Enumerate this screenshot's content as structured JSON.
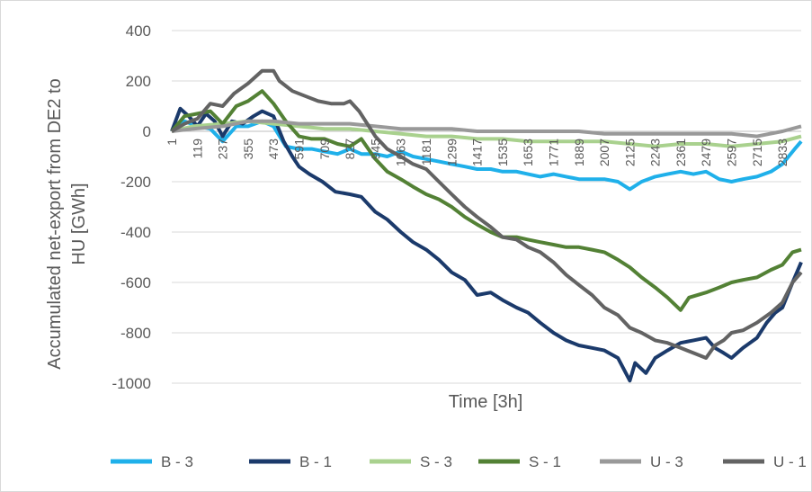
{
  "chart_data": {
    "type": "line",
    "title": "",
    "xlabel": "Time [3h]",
    "ylabel": "Accumulated net-export from DE2 to HU [GWh]",
    "ylim": [
      -1000,
      400
    ],
    "yticks": [
      400,
      200,
      0,
      -200,
      -400,
      -600,
      -800,
      -1000
    ],
    "xlim": [
      1,
      2920
    ],
    "xticks": [
      1,
      119,
      237,
      355,
      473,
      591,
      709,
      827,
      945,
      1063,
      1181,
      1299,
      1417,
      1535,
      1653,
      1771,
      1889,
      2007,
      2125,
      2243,
      2361,
      2479,
      2597,
      2715,
      2833
    ],
    "grid": "horizontal",
    "legend": "bottom",
    "series": [
      {
        "name": "B - 3",
        "color": "#1fb0ea",
        "points": [
          [
            1,
            0
          ],
          [
            60,
            40
          ],
          [
            120,
            20
          ],
          [
            180,
            10
          ],
          [
            237,
            -40
          ],
          [
            300,
            20
          ],
          [
            355,
            20
          ],
          [
            420,
            40
          ],
          [
            473,
            20
          ],
          [
            530,
            -60
          ],
          [
            591,
            -70
          ],
          [
            650,
            -70
          ],
          [
            709,
            -80
          ],
          [
            770,
            -90
          ],
          [
            827,
            -70
          ],
          [
            880,
            -90
          ],
          [
            945,
            -90
          ],
          [
            1000,
            -100
          ],
          [
            1063,
            -80
          ],
          [
            1120,
            -100
          ],
          [
            1181,
            -110
          ],
          [
            1240,
            -120
          ],
          [
            1299,
            -130
          ],
          [
            1360,
            -140
          ],
          [
            1417,
            -150
          ],
          [
            1480,
            -150
          ],
          [
            1535,
            -160
          ],
          [
            1600,
            -160
          ],
          [
            1653,
            -170
          ],
          [
            1710,
            -180
          ],
          [
            1771,
            -170
          ],
          [
            1830,
            -180
          ],
          [
            1889,
            -190
          ],
          [
            1950,
            -190
          ],
          [
            2007,
            -190
          ],
          [
            2070,
            -200
          ],
          [
            2125,
            -230
          ],
          [
            2180,
            -200
          ],
          [
            2243,
            -180
          ],
          [
            2300,
            -170
          ],
          [
            2361,
            -160
          ],
          [
            2420,
            -170
          ],
          [
            2479,
            -160
          ],
          [
            2540,
            -190
          ],
          [
            2597,
            -200
          ],
          [
            2650,
            -190
          ],
          [
            2715,
            -180
          ],
          [
            2780,
            -160
          ],
          [
            2833,
            -130
          ],
          [
            2890,
            -70
          ],
          [
            2920,
            -40
          ]
        ]
      },
      {
        "name": "B - 1",
        "color": "#1b3a6b",
        "points": [
          [
            1,
            0
          ],
          [
            40,
            90
          ],
          [
            80,
            60
          ],
          [
            120,
            20
          ],
          [
            160,
            70
          ],
          [
            200,
            40
          ],
          [
            237,
            -20
          ],
          [
            280,
            40
          ],
          [
            330,
            30
          ],
          [
            380,
            60
          ],
          [
            420,
            80
          ],
          [
            473,
            60
          ],
          [
            520,
            -40
          ],
          [
            560,
            -100
          ],
          [
            591,
            -140
          ],
          [
            640,
            -170
          ],
          [
            700,
            -200
          ],
          [
            760,
            -240
          ],
          [
            827,
            -250
          ],
          [
            880,
            -260
          ],
          [
            945,
            -320
          ],
          [
            1000,
            -350
          ],
          [
            1063,
            -400
          ],
          [
            1120,
            -440
          ],
          [
            1181,
            -470
          ],
          [
            1240,
            -510
          ],
          [
            1299,
            -560
          ],
          [
            1360,
            -590
          ],
          [
            1417,
            -650
          ],
          [
            1480,
            -640
          ],
          [
            1535,
            -670
          ],
          [
            1600,
            -700
          ],
          [
            1653,
            -720
          ],
          [
            1710,
            -760
          ],
          [
            1771,
            -800
          ],
          [
            1830,
            -830
          ],
          [
            1889,
            -850
          ],
          [
            1950,
            -860
          ],
          [
            2007,
            -870
          ],
          [
            2070,
            -900
          ],
          [
            2125,
            -990
          ],
          [
            2150,
            -920
          ],
          [
            2200,
            -960
          ],
          [
            2243,
            -900
          ],
          [
            2300,
            -870
          ],
          [
            2361,
            -840
          ],
          [
            2420,
            -830
          ],
          [
            2479,
            -820
          ],
          [
            2520,
            -860
          ],
          [
            2560,
            -880
          ],
          [
            2597,
            -900
          ],
          [
            2650,
            -860
          ],
          [
            2715,
            -820
          ],
          [
            2760,
            -760
          ],
          [
            2800,
            -720
          ],
          [
            2833,
            -700
          ],
          [
            2880,
            -600
          ],
          [
            2920,
            -520
          ]
        ]
      },
      {
        "name": "S - 3",
        "color": "#a9d18e",
        "points": [
          [
            1,
            0
          ],
          [
            100,
            20
          ],
          [
            237,
            30
          ],
          [
            355,
            40
          ],
          [
            473,
            30
          ],
          [
            591,
            20
          ],
          [
            709,
            10
          ],
          [
            827,
            10
          ],
          [
            945,
            0
          ],
          [
            1063,
            -10
          ],
          [
            1181,
            -20
          ],
          [
            1299,
            -20
          ],
          [
            1417,
            -30
          ],
          [
            1535,
            -30
          ],
          [
            1653,
            -40
          ],
          [
            1771,
            -40
          ],
          [
            1889,
            -40
          ],
          [
            2007,
            -40
          ],
          [
            2125,
            -50
          ],
          [
            2243,
            -60
          ],
          [
            2361,
            -50
          ],
          [
            2479,
            -50
          ],
          [
            2597,
            -60
          ],
          [
            2715,
            -50
          ],
          [
            2833,
            -40
          ],
          [
            2920,
            -20
          ]
        ]
      },
      {
        "name": "S - 1",
        "color": "#538135",
        "points": [
          [
            1,
            0
          ],
          [
            60,
            60
          ],
          [
            120,
            70
          ],
          [
            180,
            80
          ],
          [
            237,
            30
          ],
          [
            300,
            100
          ],
          [
            355,
            120
          ],
          [
            420,
            160
          ],
          [
            473,
            110
          ],
          [
            530,
            40
          ],
          [
            591,
            -20
          ],
          [
            650,
            -30
          ],
          [
            709,
            -30
          ],
          [
            770,
            -50
          ],
          [
            827,
            -60
          ],
          [
            880,
            -30
          ],
          [
            945,
            -110
          ],
          [
            1000,
            -160
          ],
          [
            1063,
            -190
          ],
          [
            1120,
            -220
          ],
          [
            1181,
            -250
          ],
          [
            1240,
            -270
          ],
          [
            1299,
            -300
          ],
          [
            1360,
            -340
          ],
          [
            1417,
            -370
          ],
          [
            1480,
            -400
          ],
          [
            1535,
            -420
          ],
          [
            1600,
            -420
          ],
          [
            1653,
            -430
          ],
          [
            1710,
            -440
          ],
          [
            1771,
            -450
          ],
          [
            1830,
            -460
          ],
          [
            1889,
            -460
          ],
          [
            1950,
            -470
          ],
          [
            2007,
            -480
          ],
          [
            2070,
            -510
          ],
          [
            2125,
            -540
          ],
          [
            2180,
            -580
          ],
          [
            2243,
            -620
          ],
          [
            2300,
            -660
          ],
          [
            2361,
            -710
          ],
          [
            2400,
            -660
          ],
          [
            2479,
            -640
          ],
          [
            2540,
            -620
          ],
          [
            2597,
            -600
          ],
          [
            2650,
            -590
          ],
          [
            2715,
            -580
          ],
          [
            2780,
            -550
          ],
          [
            2833,
            -530
          ],
          [
            2880,
            -480
          ],
          [
            2920,
            -470
          ]
        ]
      },
      {
        "name": "U - 3",
        "color": "#999999",
        "points": [
          [
            1,
            0
          ],
          [
            100,
            10
          ],
          [
            237,
            20
          ],
          [
            355,
            40
          ],
          [
            473,
            40
          ],
          [
            591,
            30
          ],
          [
            709,
            30
          ],
          [
            827,
            30
          ],
          [
            945,
            20
          ],
          [
            1063,
            10
          ],
          [
            1181,
            10
          ],
          [
            1299,
            10
          ],
          [
            1417,
            0
          ],
          [
            1535,
            0
          ],
          [
            1653,
            0
          ],
          [
            1771,
            0
          ],
          [
            1889,
            0
          ],
          [
            2007,
            -10
          ],
          [
            2125,
            -10
          ],
          [
            2243,
            -10
          ],
          [
            2361,
            -10
          ],
          [
            2479,
            -10
          ],
          [
            2597,
            -10
          ],
          [
            2715,
            -20
          ],
          [
            2833,
            0
          ],
          [
            2920,
            20
          ]
        ]
      },
      {
        "name": "U - 1",
        "color": "#636363",
        "points": [
          [
            1,
            0
          ],
          [
            60,
            30
          ],
          [
            120,
            50
          ],
          [
            180,
            110
          ],
          [
            237,
            100
          ],
          [
            290,
            150
          ],
          [
            355,
            190
          ],
          [
            420,
            240
          ],
          [
            473,
            240
          ],
          [
            500,
            200
          ],
          [
            560,
            160
          ],
          [
            620,
            140
          ],
          [
            680,
            120
          ],
          [
            740,
            110
          ],
          [
            800,
            110
          ],
          [
            827,
            120
          ],
          [
            870,
            80
          ],
          [
            945,
            -20
          ],
          [
            1000,
            -70
          ],
          [
            1063,
            -100
          ],
          [
            1120,
            -130
          ],
          [
            1181,
            -150
          ],
          [
            1240,
            -200
          ],
          [
            1299,
            -250
          ],
          [
            1360,
            -300
          ],
          [
            1417,
            -340
          ],
          [
            1480,
            -380
          ],
          [
            1535,
            -420
          ],
          [
            1600,
            -430
          ],
          [
            1653,
            -460
          ],
          [
            1710,
            -480
          ],
          [
            1771,
            -520
          ],
          [
            1830,
            -570
          ],
          [
            1889,
            -610
          ],
          [
            1950,
            -650
          ],
          [
            2007,
            -700
          ],
          [
            2070,
            -730
          ],
          [
            2125,
            -780
          ],
          [
            2180,
            -800
          ],
          [
            2243,
            -830
          ],
          [
            2300,
            -840
          ],
          [
            2361,
            -860
          ],
          [
            2420,
            -880
          ],
          [
            2479,
            -900
          ],
          [
            2520,
            -850
          ],
          [
            2560,
            -830
          ],
          [
            2597,
            -800
          ],
          [
            2650,
            -790
          ],
          [
            2715,
            -760
          ],
          [
            2780,
            -720
          ],
          [
            2833,
            -680
          ],
          [
            2880,
            -600
          ],
          [
            2920,
            -560
          ]
        ]
      }
    ]
  }
}
